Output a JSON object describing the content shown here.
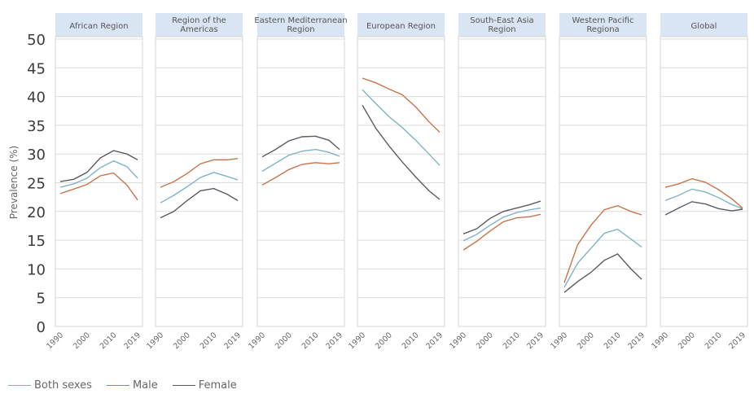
{
  "chart_data": {
    "type": "line",
    "ylabel": "Prevalence (%)",
    "ylim": [
      0,
      50
    ],
    "yticks": [
      "0",
      "5",
      "10",
      "15",
      "20",
      "25",
      "30",
      "35",
      "40",
      "45",
      "50"
    ],
    "x": [
      1990,
      1995,
      2000,
      2005,
      2010,
      2015,
      2019
    ],
    "xtick_labels": [
      "1990",
      "2000",
      "2010",
      "2019"
    ],
    "colors": {
      "Both sexes": "#7fb3c8",
      "Male": "#c8744a",
      "Female": "#5a5a66"
    },
    "legend_position": "bottom-left",
    "legend": [
      "Both sexes",
      "Male",
      "Female"
    ],
    "panels": [
      {
        "title": [
          "African Region"
        ],
        "series": [
          {
            "name": "Both sexes",
            "values": [
              24.2,
              24.8,
              25.8,
              27.6,
              28.8,
              27.8,
              25.8
            ]
          },
          {
            "name": "Male",
            "values": [
              23.1,
              23.9,
              24.7,
              26.2,
              26.7,
              24.6,
              22.0
            ]
          },
          {
            "name": "Female",
            "values": [
              25.2,
              25.6,
              26.8,
              29.3,
              30.6,
              30.0,
              29.0
            ]
          }
        ]
      },
      {
        "title": [
          "Region of the",
          "Americas"
        ],
        "series": [
          {
            "name": "Both sexes",
            "values": [
              21.5,
              22.8,
              24.3,
              25.9,
              26.8,
              26.1,
              25.5
            ]
          },
          {
            "name": "Male",
            "values": [
              24.2,
              25.2,
              26.6,
              28.3,
              29.0,
              29.0,
              29.2
            ]
          },
          {
            "name": "Female",
            "values": [
              18.9,
              20.0,
              21.9,
              23.6,
              24.0,
              23.0,
              21.9
            ]
          }
        ]
      },
      {
        "title": [
          "Eastern Mediterranean",
          "Region"
        ],
        "series": [
          {
            "name": "Both sexes",
            "values": [
              27.0,
              28.4,
              29.8,
              30.5,
              30.8,
              30.3,
              29.6
            ]
          },
          {
            "name": "Male",
            "values": [
              24.6,
              25.9,
              27.3,
              28.2,
              28.5,
              28.3,
              28.5
            ]
          },
          {
            "name": "Female",
            "values": [
              29.5,
              30.8,
              32.3,
              33.0,
              33.1,
              32.4,
              30.8
            ]
          }
        ]
      },
      {
        "title": [
          "European Region"
        ],
        "series": [
          {
            "name": "Both sexes",
            "values": [
              41.2,
              38.8,
              36.5,
              34.6,
              32.4,
              30.0,
              28.0
            ]
          },
          {
            "name": "Male",
            "values": [
              43.2,
              42.4,
              41.3,
              40.3,
              38.2,
              35.6,
              33.8
            ]
          },
          {
            "name": "Female",
            "values": [
              38.5,
              34.5,
              31.4,
              28.6,
              26.0,
              23.6,
              22.1
            ]
          }
        ]
      },
      {
        "title": [
          "South-East Asia",
          "Region"
        ],
        "series": [
          {
            "name": "Both sexes",
            "values": [
              14.9,
              16.0,
              17.6,
              19.0,
              19.8,
              20.3,
              20.6
            ]
          },
          {
            "name": "Male",
            "values": [
              13.3,
              14.8,
              16.6,
              18.2,
              18.9,
              19.1,
              19.5
            ]
          },
          {
            "name": "Female",
            "values": [
              16.1,
              17.0,
              18.8,
              20.0,
              20.6,
              21.2,
              21.8
            ]
          }
        ]
      },
      {
        "title": [
          "Western Pacific",
          "Regiona"
        ],
        "series": [
          {
            "name": "Both sexes",
            "values": [
              6.8,
              11.0,
              13.6,
              16.2,
              16.9,
              15.2,
              13.8
            ]
          },
          {
            "name": "Male",
            "values": [
              7.6,
              14.2,
              17.6,
              20.3,
              21.0,
              20.0,
              19.4
            ]
          },
          {
            "name": "Female",
            "values": [
              5.9,
              7.8,
              9.4,
              11.5,
              12.6,
              10.0,
              8.2
            ]
          }
        ]
      },
      {
        "title": [
          "Global"
        ],
        "series": [
          {
            "name": "Both sexes",
            "values": [
              21.9,
              22.8,
              23.9,
              23.4,
              22.4,
              21.2,
              20.5
            ]
          },
          {
            "name": "Male",
            "values": [
              24.2,
              24.8,
              25.7,
              25.1,
              23.8,
              22.2,
              20.6
            ]
          },
          {
            "name": "Female",
            "values": [
              19.4,
              20.6,
              21.7,
              21.3,
              20.5,
              20.1,
              20.4
            ]
          }
        ]
      }
    ]
  }
}
